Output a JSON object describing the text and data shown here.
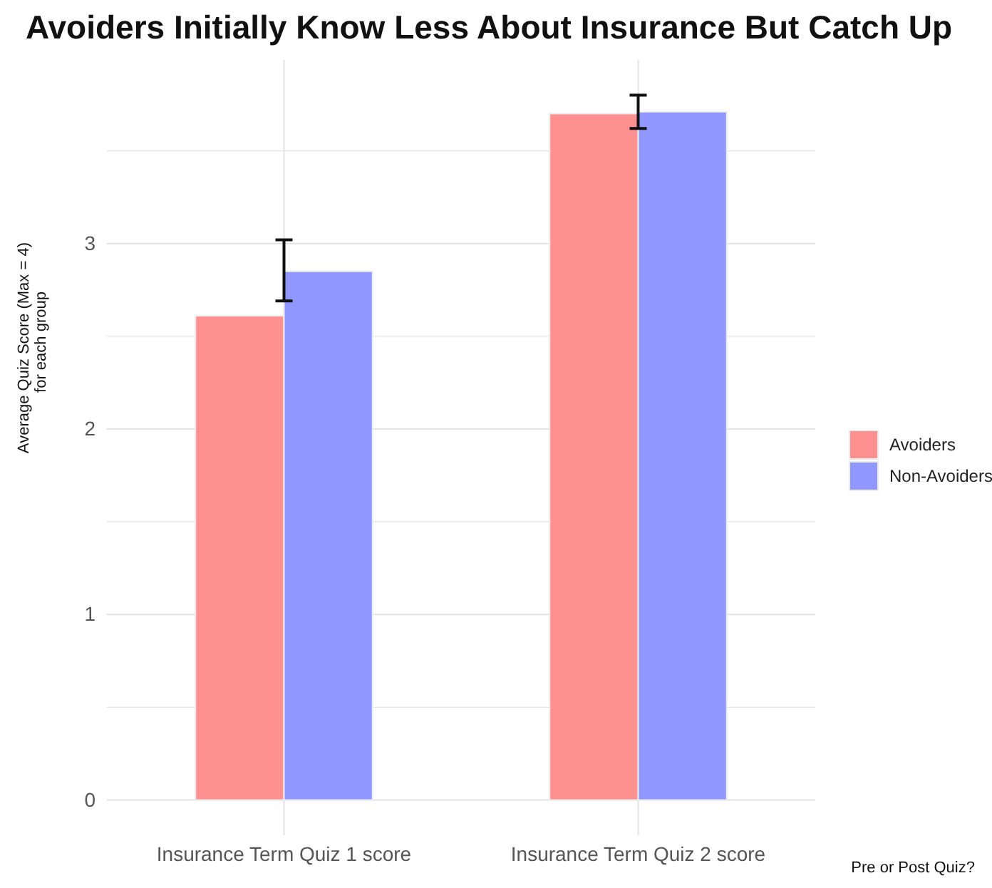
{
  "chart_data": {
    "type": "bar",
    "title": "Avoiders Initially Know Less About Insurance But Catch Up",
    "xlabel": "Pre or Post Quiz?",
    "ylabel": "Average Quiz Score (Max = 4)\nfor each group",
    "categories": [
      "Insurance Term Quiz 1 score",
      "Insurance Term Quiz 2 score"
    ],
    "series": [
      {
        "name": "Avoiders",
        "color": "#ff9090",
        "values": [
          2.61,
          3.7
        ]
      },
      {
        "name": "Non-Avoiders",
        "color": "#9098ff",
        "values": [
          2.85,
          3.71
        ],
        "errors": [
          [
            2.69,
            3.02
          ],
          [
            3.62,
            3.8
          ]
        ]
      }
    ],
    "ylim": [
      -0.19,
      3.99
    ],
    "yticks": [
      0,
      {
        "value": 0.5,
        "label": null
      },
      1,
      {
        "value": 1.5,
        "label": null
      },
      2,
      {
        "value": 2.5,
        "label": null
      },
      3,
      {
        "value": 3.5,
        "label": null
      }
    ],
    "grid": true,
    "legend": "right"
  }
}
